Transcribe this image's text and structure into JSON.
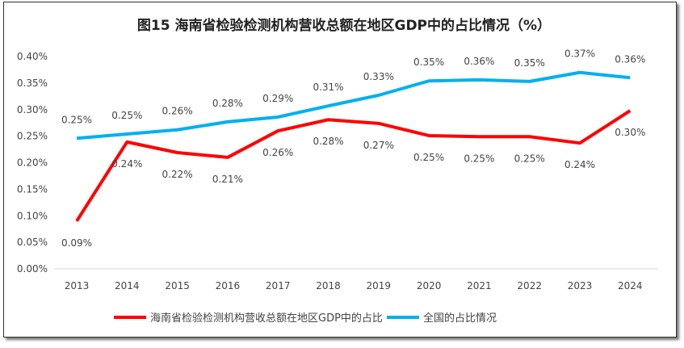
{
  "chart_data": {
    "type": "line",
    "title": "图15  海南省检验检测机构营收总额在地区GDP中的占比情况（%）",
    "xlabel": "",
    "ylabel": "",
    "categories": [
      "2013",
      "2014",
      "2015",
      "2016",
      "2017",
      "2018",
      "2019",
      "2020",
      "2021",
      "2022",
      "2023",
      "2024"
    ],
    "ylim": [
      0,
      0.4
    ],
    "yticks": [
      "0.00%",
      "0.05%",
      "0.10%",
      "0.15%",
      "0.20%",
      "0.25%",
      "0.30%",
      "0.35%",
      "0.40%"
    ],
    "grid": false,
    "legend": "bottom",
    "unit": "%",
    "series": [
      {
        "name": "海南省检验检测机构营收总额在地区GDP中的占比",
        "color": "#ff0000",
        "label_pos": "below",
        "values": [
          0.09,
          0.239,
          0.219,
          0.21,
          0.26,
          0.281,
          0.274,
          0.251,
          0.249,
          0.249,
          0.237,
          0.298
        ]
      },
      {
        "name": "全国的占比情况",
        "color": "#00b0f0",
        "label_pos": "above",
        "values": [
          0.246,
          0.254,
          0.262,
          0.277,
          0.286,
          0.307,
          0.327,
          0.354,
          0.356,
          0.353,
          0.37,
          0.36
        ]
      }
    ]
  }
}
